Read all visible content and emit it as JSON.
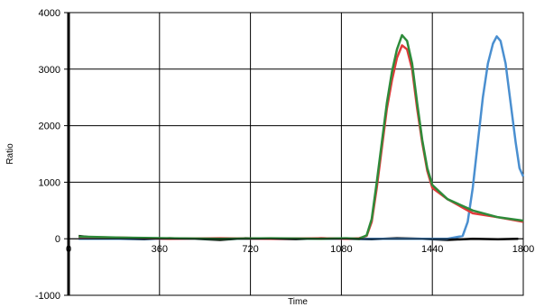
{
  "chart_data": {
    "type": "line",
    "xlabel": "Time",
    "ylabel": "Ratio",
    "xlim": [
      0,
      1800
    ],
    "ylim": [
      -1000,
      4000
    ],
    "x_ticks": [
      0,
      360,
      720,
      1080,
      1440,
      1800
    ],
    "y_ticks": [
      -1000,
      0,
      1000,
      2000,
      3000,
      4000
    ],
    "grid": true,
    "legend": "none",
    "series": [
      {
        "color": "#000000",
        "x": [
          40,
          100,
          200,
          300,
          400,
          500,
          600,
          700,
          800,
          900,
          1000,
          1100,
          1200,
          1300,
          1400,
          1500,
          1600,
          1700,
          1780
        ],
        "y": [
          50,
          20,
          0,
          -10,
          10,
          0,
          -20,
          10,
          0,
          -10,
          10,
          0,
          -10,
          10,
          0,
          -20,
          0,
          -10,
          0
        ]
      },
      {
        "color": "#4a8fd0",
        "x": [
          40,
          300,
          600,
          900,
          1100,
          1200,
          1300,
          1400,
          1500,
          1560,
          1580,
          1600,
          1620,
          1640,
          1660,
          1680,
          1695,
          1710,
          1730,
          1750,
          1770,
          1785,
          1800
        ],
        "y": [
          0,
          0,
          0,
          0,
          0,
          0,
          0,
          0,
          0,
          50,
          300,
          900,
          1700,
          2500,
          3100,
          3450,
          3580,
          3500,
          3100,
          2400,
          1700,
          1250,
          1100
        ]
      },
      {
        "color": "#e03a3a",
        "x": [
          40,
          200,
          400,
          600,
          800,
          1000,
          1100,
          1150,
          1180,
          1200,
          1220,
          1240,
          1260,
          1280,
          1300,
          1320,
          1340,
          1360,
          1380,
          1400,
          1420,
          1440,
          1500,
          1600,
          1700,
          1800
        ],
        "y": [
          30,
          20,
          0,
          10,
          0,
          10,
          0,
          10,
          50,
          300,
          900,
          1600,
          2300,
          2800,
          3200,
          3420,
          3350,
          3000,
          2300,
          1700,
          1200,
          900,
          700,
          450,
          380,
          300
        ]
      },
      {
        "color": "#2e8b3a",
        "x": [
          40,
          200,
          400,
          600,
          800,
          1000,
          1100,
          1150,
          1180,
          1200,
          1220,
          1240,
          1260,
          1280,
          1300,
          1320,
          1340,
          1360,
          1380,
          1400,
          1420,
          1440,
          1500,
          1600,
          1700,
          1800
        ],
        "y": [
          40,
          20,
          10,
          0,
          10,
          0,
          10,
          0,
          60,
          350,
          1000,
          1700,
          2400,
          2950,
          3350,
          3600,
          3500,
          3100,
          2400,
          1750,
          1250,
          950,
          700,
          500,
          380,
          320
        ]
      }
    ]
  }
}
